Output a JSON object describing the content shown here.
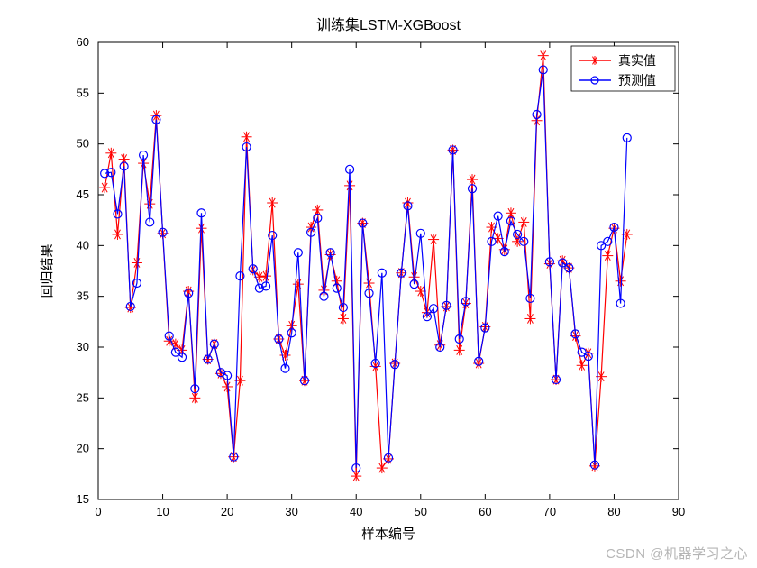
{
  "chart": {
    "type": "line",
    "title": "训练集LSTM-XGBoost",
    "title_fontsize": 16,
    "xlabel": "样本编号",
    "ylabel": "回归结果",
    "label_fontsize": 15,
    "tick_fontsize": 13,
    "xlim": [
      0,
      90
    ],
    "ylim": [
      15,
      60
    ],
    "xtick_step": 10,
    "ytick_step": 5,
    "background_color": "#ffffff",
    "axis_color": "#000000",
    "grid": false,
    "x_values": [
      1,
      2,
      3,
      4,
      5,
      6,
      7,
      8,
      9,
      10,
      11,
      12,
      13,
      14,
      15,
      16,
      17,
      18,
      19,
      20,
      21,
      22,
      23,
      24,
      25,
      26,
      27,
      28,
      29,
      30,
      31,
      32,
      33,
      34,
      35,
      36,
      37,
      38,
      39,
      40,
      41,
      42,
      43,
      44,
      45,
      46,
      47,
      48,
      49,
      50,
      51,
      52,
      53,
      54,
      55,
      56,
      57,
      58,
      59,
      60,
      61,
      62,
      63,
      64,
      65,
      66,
      67,
      68,
      69,
      70,
      71,
      72,
      73,
      74,
      75,
      76,
      77,
      78,
      79,
      80,
      81,
      82
    ],
    "series": [
      {
        "name": "true",
        "label": "真实值",
        "color": "#ff0000",
        "marker": "star",
        "marker_size": 6,
        "line_width": 1.2,
        "y": [
          45.7,
          49.1,
          41.1,
          48.5,
          33.9,
          38.3,
          48.1,
          44.1,
          52.8,
          41.2,
          30.6,
          30.3,
          29.7,
          35.5,
          25.0,
          41.7,
          28.8,
          30.3,
          27.4,
          26.1,
          19.2,
          26.7,
          50.7,
          37.6,
          36.9,
          37.0,
          44.2,
          30.8,
          29.2,
          32.1,
          36.2,
          26.7,
          41.8,
          43.5,
          35.6,
          39.1,
          36.5,
          32.8,
          45.9,
          17.3,
          42.2,
          36.3,
          28.1,
          18.1,
          19.0,
          28.4,
          37.3,
          44.2,
          36.9,
          35.5,
          33.4,
          40.6,
          30.2,
          34.0,
          49.4,
          29.7,
          34.3,
          46.5,
          28.4,
          32.0,
          41.8,
          40.7,
          39.6,
          43.2,
          40.4,
          42.3,
          32.8,
          52.3,
          58.7,
          38.2,
          26.8,
          38.5,
          37.8,
          31.1,
          28.2,
          29.4,
          18.3,
          27.1,
          39.0,
          41.7,
          36.5,
          41.1
        ]
      },
      {
        "name": "pred",
        "label": "预测值",
        "color": "#0000ff",
        "marker": "circle",
        "marker_size": 4.5,
        "line_width": 1.2,
        "y": [
          47.1,
          47.2,
          43.1,
          47.8,
          34.0,
          36.3,
          48.9,
          42.3,
          52.4,
          41.3,
          31.1,
          29.5,
          29.0,
          35.3,
          25.9,
          43.2,
          28.8,
          30.3,
          27.5,
          27.2,
          19.2,
          37.0,
          49.7,
          37.7,
          35.8,
          36.0,
          41.0,
          30.8,
          27.9,
          31.4,
          39.3,
          26.7,
          41.3,
          42.7,
          35.0,
          39.3,
          35.8,
          33.9,
          47.5,
          18.1,
          42.2,
          35.3,
          28.4,
          37.3,
          19.1,
          28.3,
          37.3,
          43.9,
          36.2,
          41.2,
          33.0,
          33.8,
          30.0,
          34.1,
          49.4,
          30.8,
          34.5,
          45.6,
          28.6,
          31.9,
          40.4,
          42.9,
          39.4,
          42.4,
          41.1,
          40.4,
          34.8,
          52.9,
          57.3,
          38.4,
          26.8,
          38.3,
          37.8,
          31.3,
          29.5,
          29.1,
          18.4,
          40.0,
          40.4,
          41.8,
          34.3,
          50.6
        ]
      }
    ],
    "legend": {
      "position": "top-right",
      "items": [
        "真实值",
        "预测值"
      ]
    }
  },
  "watermark": "CSDN @机器学习之心"
}
